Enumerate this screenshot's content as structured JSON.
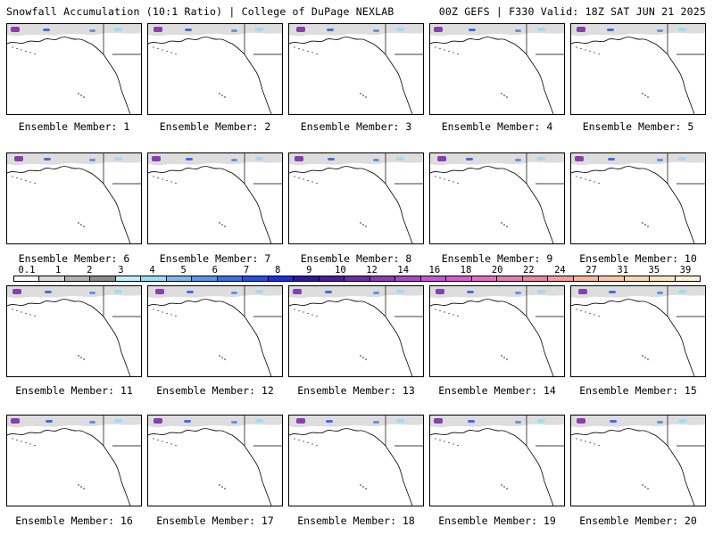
{
  "header": {
    "left_title": "Snowfall Accumulation (10:1 Ratio) | College of DuPage NEXLAB",
    "right_title": "00Z GEFS | F330 Valid: 18Z SAT JUN 21 2025"
  },
  "panels": [
    {
      "label": "Ensemble Member: 1"
    },
    {
      "label": "Ensemble Member: 2"
    },
    {
      "label": "Ensemble Member: 3"
    },
    {
      "label": "Ensemble Member: 4"
    },
    {
      "label": "Ensemble Member: 5"
    },
    {
      "label": "Ensemble Member: 6"
    },
    {
      "label": "Ensemble Member: 7"
    },
    {
      "label": "Ensemble Member: 8"
    },
    {
      "label": "Ensemble Member: 9"
    },
    {
      "label": "Ensemble Member: 10"
    },
    {
      "label": "Ensemble Member: 11"
    },
    {
      "label": "Ensemble Member: 12"
    },
    {
      "label": "Ensemble Member: 13"
    },
    {
      "label": "Ensemble Member: 14"
    },
    {
      "label": "Ensemble Member: 15"
    },
    {
      "label": "Ensemble Member: 16"
    },
    {
      "label": "Ensemble Member: 17"
    },
    {
      "label": "Ensemble Member: 18"
    },
    {
      "label": "Ensemble Member: 19"
    },
    {
      "label": "Ensemble Member: 20"
    }
  ],
  "colorbar": {
    "tick_labels": [
      "0.1",
      "1",
      "2",
      "3",
      "4",
      "5",
      "6",
      "7",
      "8",
      "9",
      "10",
      "12",
      "14",
      "16",
      "18",
      "20",
      "22",
      "24",
      "27",
      "31",
      "35",
      "39"
    ],
    "colors": [
      "#ffffff",
      "#d9d9d9",
      "#b3b3b3",
      "#8c8c8c",
      "#bfefff",
      "#9fdcf5",
      "#7fb8ef",
      "#5c94e8",
      "#3c6fe0",
      "#2a4de0",
      "#1f2ed6",
      "#2a1a9e",
      "#4b1c9c",
      "#6a2fa3",
      "#8a3db3",
      "#a64cc0",
      "#c25acb",
      "#d65ec9",
      "#e06fbe",
      "#e07fb0",
      "#e48aa0",
      "#f0a0a0",
      "#f6b6a0",
      "#f8c8aa",
      "#fad7b6",
      "#fce3c4",
      "#fef0da"
    ]
  }
}
